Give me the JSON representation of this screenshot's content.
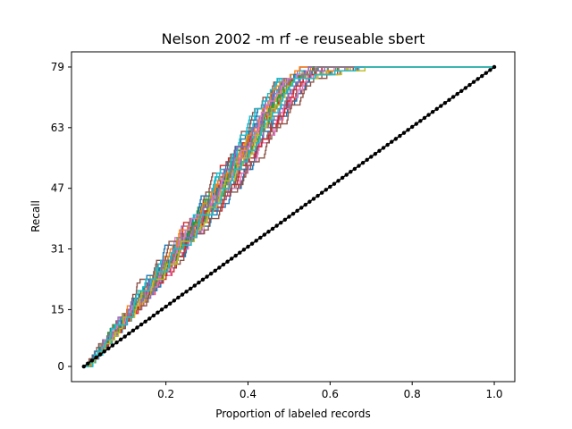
{
  "chart_data": {
    "type": "line",
    "title": "Nelson 2002 -m rf -e reuseable sbert",
    "xlabel": "Proportion of labeled records",
    "ylabel": "Recall",
    "xlim": [
      -0.03,
      1.05
    ],
    "ylim": [
      -4,
      83
    ],
    "x_ticks": [
      0.2,
      0.4,
      0.6,
      0.8,
      1.0
    ],
    "x_tick_labels": [
      "0.2",
      "0.4",
      "0.6",
      "0.8",
      "1.0"
    ],
    "y_ticks": [
      0,
      15,
      31,
      47,
      63,
      79
    ],
    "y_tick_labels": [
      "0",
      "15",
      "31",
      "47",
      "63",
      "79"
    ],
    "grid": false,
    "legend": "none",
    "step_series_count": 40,
    "step_curve_shape": {
      "fast_end_x": [
        0.47,
        0.56
      ],
      "slow_end_x": [
        0.52,
        0.69
      ],
      "spread_x_at_recall_30": [
        0.17,
        0.37
      ],
      "spread_x_at_recall_60": [
        0.33,
        0.45
      ]
    },
    "palette": [
      "#1f77b4",
      "#ff7f0e",
      "#2ca02c",
      "#d62728",
      "#9467bd",
      "#8c564b",
      "#e377c2",
      "#7f7f7f",
      "#bcbd22",
      "#17becf"
    ],
    "random_baseline": {
      "name": "random",
      "color": "#000000",
      "x": [
        0,
        1
      ],
      "y": [
        0,
        79
      ],
      "marker": "dot",
      "marker_count": 100
    },
    "total_relevant": 79
  }
}
